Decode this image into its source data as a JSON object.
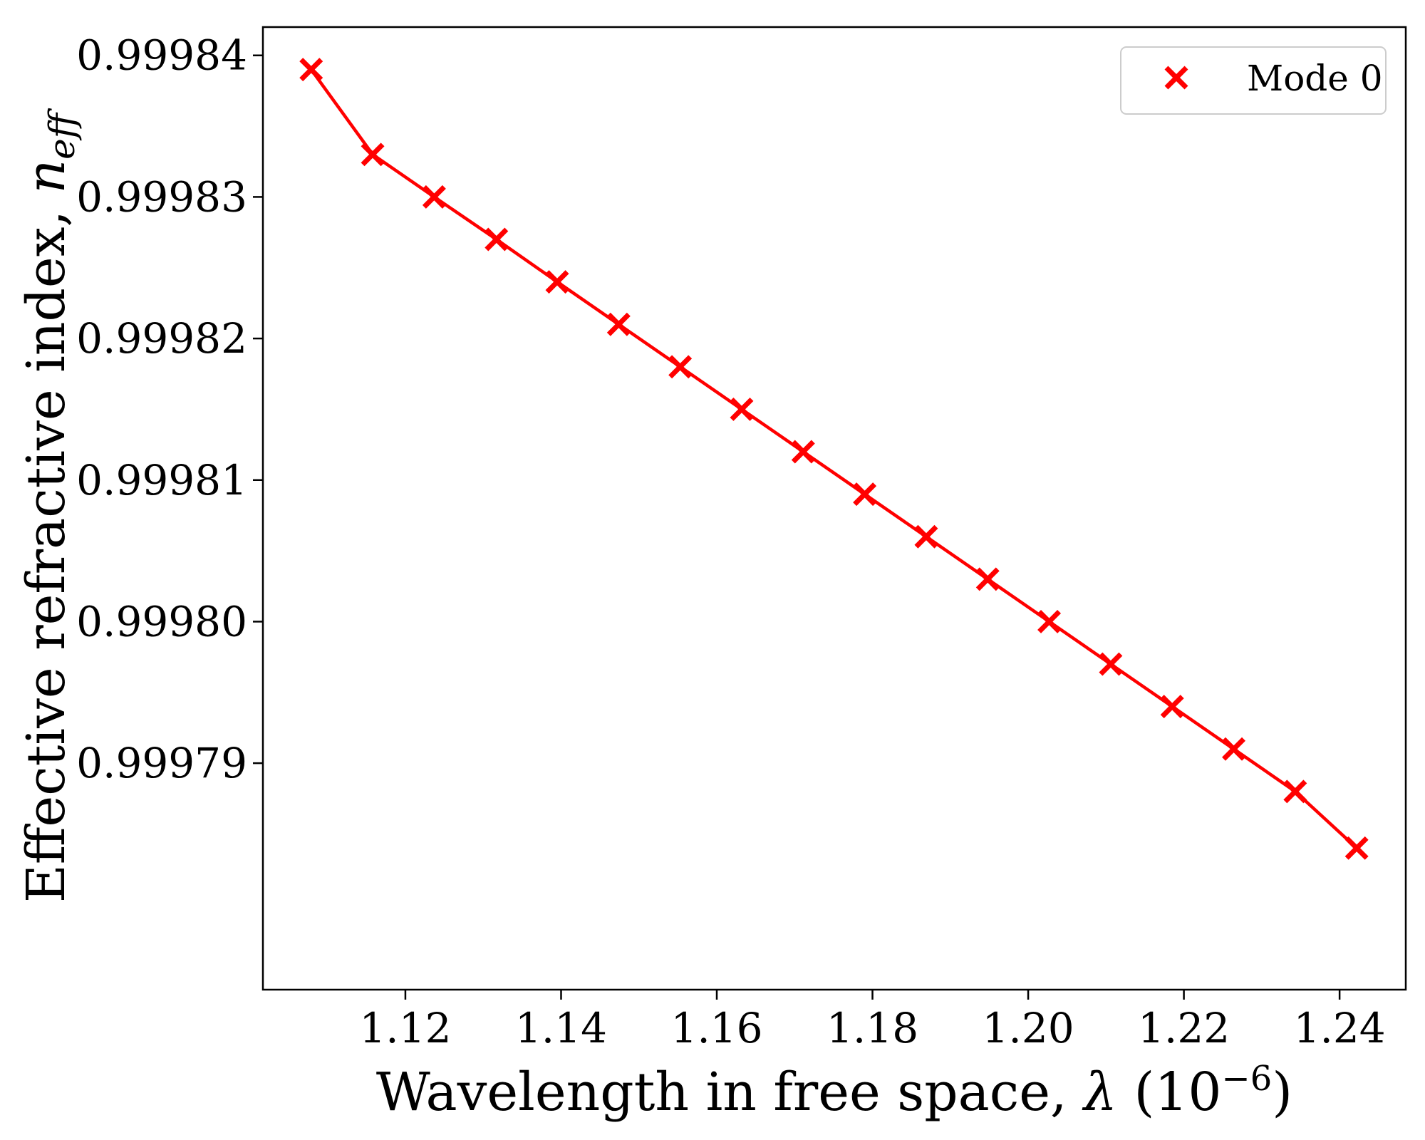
{
  "chart_data": {
    "type": "line",
    "title": "",
    "xlabel": {
      "text": "Wavelength in free space, ",
      "symbol": "λ",
      "unit_prefix": " (10",
      "unit_exponent": "−6",
      "unit_suffix": ")"
    },
    "ylabel": {
      "text": "Effective refractive index, ",
      "symbol": "n",
      "subscript": "eff"
    },
    "xlim": [
      1.1017,
      1.2485
    ],
    "ylim": [
      0.999774,
      0.999842
    ],
    "xticks": [
      1.12,
      1.14,
      1.16,
      1.18,
      1.2,
      1.22,
      1.24
    ],
    "xtick_labels": [
      "1.12",
      "1.14",
      "1.16",
      "1.18",
      "1.20",
      "1.22",
      "1.24"
    ],
    "yticks": [
      0.99979,
      0.9998,
      0.99981,
      0.99982,
      0.99983,
      0.99984
    ],
    "ytick_labels": [
      "0.99979",
      "0.99980",
      "0.99981",
      "0.99982",
      "0.99983",
      "0.99984"
    ],
    "grid": false,
    "legend_position": "top-right",
    "series": [
      {
        "name": "Mode 0",
        "color": "#ff0000",
        "marker": "x",
        "x": [
          1.1079,
          1.1158,
          1.1237,
          1.1317,
          1.1395,
          1.1474,
          1.1553,
          1.1632,
          1.1711,
          1.179,
          1.1869,
          1.1948,
          1.2027,
          1.2106,
          1.2185,
          1.2264,
          1.2343,
          1.2422
        ],
        "y": [
          0.999839,
          0.999833,
          0.99983,
          0.999827,
          0.999824,
          0.999821,
          0.999818,
          0.999815,
          0.999812,
          0.999809,
          0.999806,
          0.999803,
          0.9998,
          0.999797,
          0.999794,
          0.999791,
          0.999788,
          0.999784
        ]
      }
    ]
  }
}
